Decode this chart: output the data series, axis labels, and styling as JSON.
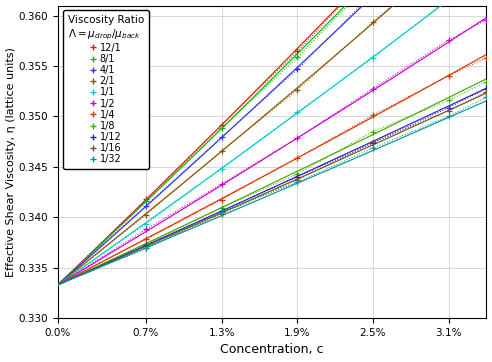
{
  "xlabel": "Concentration, c",
  "ylabel": "Effective Shear Viscosity, η (lattice units)",
  "ylim": [
    0.33,
    0.361
  ],
  "xlim": [
    0.0,
    0.034
  ],
  "yticks": [
    0.33,
    0.335,
    0.34,
    0.345,
    0.35,
    0.355,
    0.36
  ],
  "xtick_vals": [
    0.0,
    0.007,
    0.013,
    0.019,
    0.025,
    0.031
  ],
  "xtick_labels": [
    "0.0%",
    "0.7%",
    "1.3%",
    "1.9%",
    "2.5%",
    "3.1%"
  ],
  "eta0": 0.3333,
  "series": [
    {
      "label": "12/1",
      "lambda": 12.0,
      "color": "#ee1111",
      "slope": 0.845
    },
    {
      "label": "8/1",
      "lambda": 8.0,
      "color": "#00bb00",
      "slope": 0.81
    },
    {
      "label": "4/1",
      "lambda": 4.0,
      "color": "#3333ee",
      "slope": 0.74
    },
    {
      "label": "2/1",
      "lambda": 2.0,
      "color": "#885500",
      "slope": 0.68
    },
    {
      "label": "1/1",
      "lambda": 1.0,
      "color": "#00cccc",
      "slope": 0.6
    },
    {
      "label": "1/2",
      "lambda": 0.5,
      "color": "#cc00cc",
      "slope": 0.49
    },
    {
      "label": "1/4",
      "lambda": 0.25,
      "color": "#dd3300",
      "slope": 0.43
    },
    {
      "label": "1/8",
      "lambda": 0.125,
      "color": "#44aa00",
      "slope": 0.37
    },
    {
      "label": "1/12",
      "lambda": 0.08333,
      "color": "#2222cc",
      "slope": 0.345
    },
    {
      "label": "1/16",
      "lambda": 0.0625,
      "color": "#775522",
      "slope": 0.33
    },
    {
      "label": "1/32",
      "lambda": 0.03125,
      "color": "#009999",
      "slope": 0.31
    }
  ],
  "c_data_points": [
    0.0,
    0.007,
    0.013,
    0.019,
    0.025,
    0.031,
    0.034
  ],
  "legend_loc": "upper left"
}
